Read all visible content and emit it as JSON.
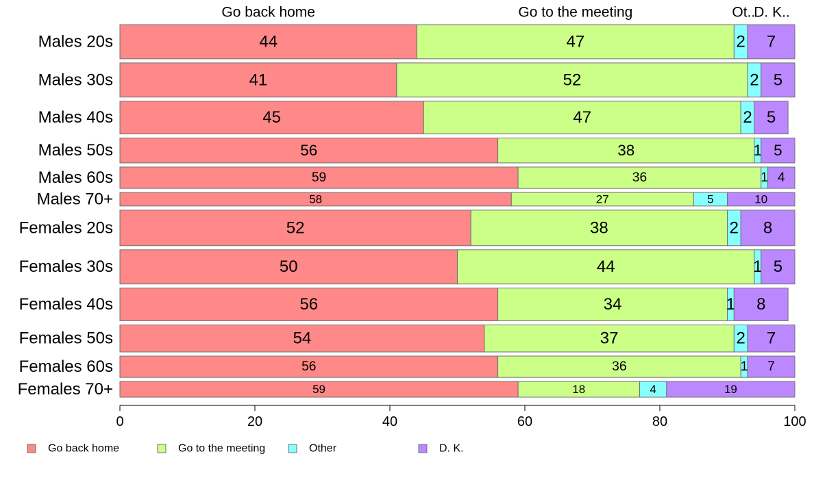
{
  "chart_data": {
    "type": "bar",
    "orientation": "horizontal",
    "stacked": "percent",
    "categories": [
      "Males 20s",
      "Males 30s",
      "Males 40s",
      "Males 50s",
      "Males 60s",
      "Males 70+",
      "Females 20s",
      "Females 30s",
      "Females 40s",
      "Females 50s",
      "Females 60s",
      "Females 70+"
    ],
    "row_weights": [
      96,
      96,
      92,
      70,
      60,
      38,
      100,
      96,
      92,
      76,
      60,
      44
    ],
    "series": [
      {
        "name": "Go back home",
        "color": "#ff8888",
        "values": [
          44,
          41,
          45,
          56,
          59,
          58,
          52,
          50,
          56,
          54,
          56,
          59
        ]
      },
      {
        "name": "Go to the meeting",
        "color": "#ccff88",
        "values": [
          47,
          52,
          47,
          38,
          36,
          27,
          38,
          44,
          34,
          37,
          36,
          18
        ]
      },
      {
        "name": "Other",
        "color": "#88ffff",
        "values": [
          2,
          2,
          2,
          1,
          1,
          5,
          2,
          1,
          1,
          2,
          1,
          4
        ]
      },
      {
        "name": "D. K.",
        "color": "#bb88ff",
        "values": [
          7,
          5,
          5,
          5,
          4,
          10,
          8,
          5,
          8,
          7,
          7,
          19
        ]
      }
    ],
    "top_labels": [
      "Go back home",
      "Go to the meeting",
      "Ot..",
      "D. K.."
    ],
    "x_ticks": [
      0,
      20,
      40,
      60,
      80,
      100
    ],
    "xlim": [
      0,
      100
    ],
    "legend": {
      "placement": "bottom",
      "items": [
        "Go back home",
        "Go to the meeting",
        "Other",
        "D. K."
      ]
    },
    "grid": false
  }
}
